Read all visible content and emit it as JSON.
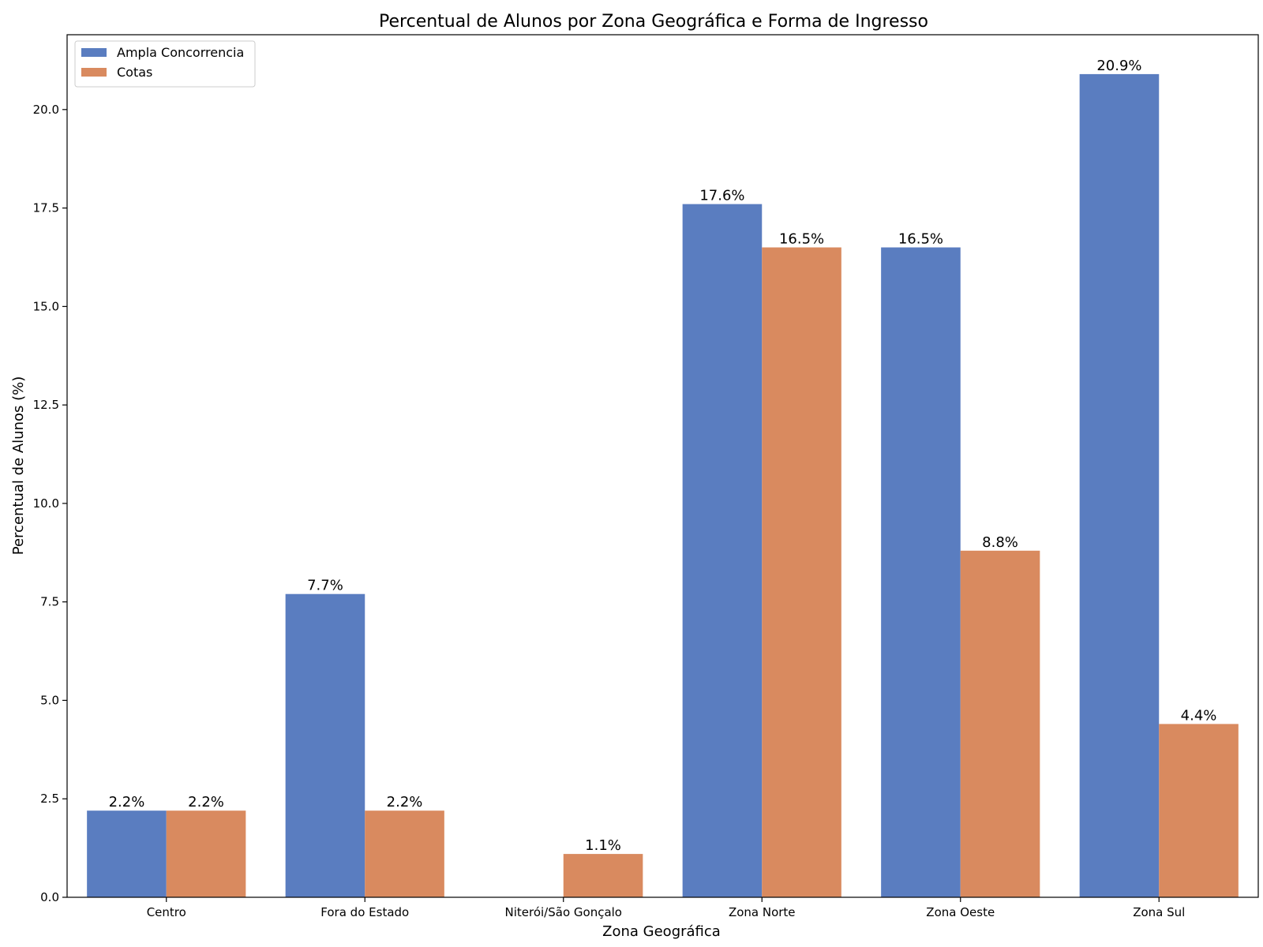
{
  "chart_data": {
    "type": "bar",
    "title": "Percentual de Alunos por Zona Geográfica e Forma de Ingresso",
    "xlabel": "Zona Geográfica",
    "ylabel": "Percentual de Alunos (%)",
    "categories": [
      "Centro",
      "Fora do Estado",
      "Niterói/São Gonçalo",
      "Zona Norte",
      "Zona Oeste",
      "Zona Sul"
    ],
    "ylim": [
      0,
      21.9
    ],
    "yticks": [
      0.0,
      2.5,
      5.0,
      7.5,
      10.0,
      12.5,
      15.0,
      17.5,
      20.0
    ],
    "ytick_labels": [
      "0.0",
      "2.5",
      "5.0",
      "7.5",
      "10.0",
      "12.5",
      "15.0",
      "17.5",
      "20.0"
    ],
    "grid": false,
    "legend_position": "top-left",
    "series": [
      {
        "name": "Ampla Concorrencia",
        "color": "#5a7dc0",
        "values": [
          2.2,
          7.7,
          null,
          17.6,
          16.5,
          20.9
        ],
        "labels": [
          "2.2%",
          "7.7%",
          "",
          "17.6%",
          "16.5%",
          "20.9%"
        ]
      },
      {
        "name": "Cotas",
        "color": "#d98a5f",
        "values": [
          2.2,
          2.2,
          1.1,
          16.5,
          8.8,
          4.4
        ],
        "labels": [
          "2.2%",
          "2.2%",
          "1.1%",
          "16.5%",
          "8.8%",
          "4.4%"
        ]
      }
    ]
  }
}
